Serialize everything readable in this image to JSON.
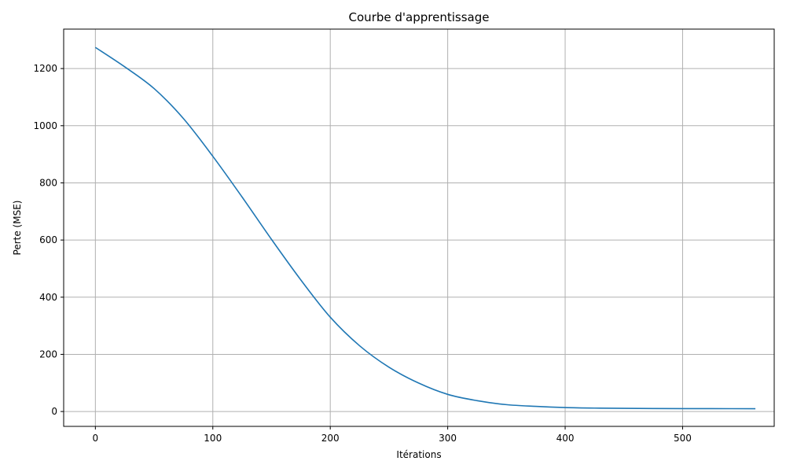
{
  "chart_data": {
    "type": "line",
    "title": "Courbe d'apprentissage",
    "xlabel": "Itérations",
    "ylabel": "Perte (MSE)",
    "xlim": [
      -27,
      578
    ],
    "ylim": [
      -52,
      1338
    ],
    "xticks": [
      0,
      100,
      200,
      300,
      400,
      500
    ],
    "yticks": [
      0,
      200,
      400,
      600,
      800,
      1000,
      1200
    ],
    "xtick_labels": [
      "0",
      "100",
      "200",
      "300",
      "400",
      "500"
    ],
    "ytick_labels": [
      "0",
      "200",
      "400",
      "600",
      "800",
      "1000",
      "1200"
    ],
    "grid": true,
    "series": [
      {
        "color": "#1f77b4",
        "x": [
          0,
          25,
          50,
          75,
          100,
          125,
          150,
          175,
          200,
          225,
          250,
          275,
          300,
          325,
          350,
          375,
          400,
          425,
          450,
          475,
          500,
          525,
          562
        ],
        "y": [
          1274,
          1206,
          1130,
          1025,
          893,
          750,
          602,
          460,
          330,
          230,
          155,
          100,
          60,
          38,
          24,
          18,
          14,
          12,
          11,
          10.5,
          10.2,
          10,
          9.8
        ]
      }
    ]
  }
}
